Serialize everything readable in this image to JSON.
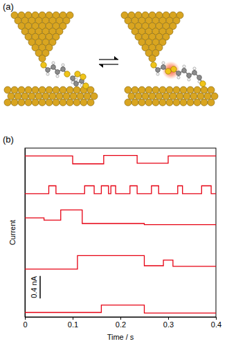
{
  "panel_labels": [
    "(a)",
    "(b)"
  ],
  "chart_data": {
    "type": "line",
    "line_style": "steps",
    "x_label": "Time / s",
    "y_label": "Current",
    "xlim": [
      0,
      0.4
    ],
    "xticks": [
      0,
      0.1,
      0.2,
      0.3,
      0.4
    ],
    "ylim": [
      0,
      3.0
    ],
    "tick_labels": "x",
    "grid": false,
    "color": "#e60012",
    "scale_bar": {
      "value": 0.4,
      "label": "0.4 nA"
    },
    "series": [
      {
        "x": [
          0,
          0.1,
          0.165,
          0.235,
          0.3,
          0.4
        ],
        "values": [
          2.86,
          2.72,
          2.87,
          2.73,
          2.86,
          2.86
        ]
      },
      {
        "x": [
          0,
          0.05,
          0.065,
          0.125,
          0.145,
          0.16,
          0.175,
          0.18,
          0.19,
          0.22,
          0.235,
          0.265,
          0.28,
          0.32,
          0.33,
          0.37,
          0.39,
          0.4
        ],
        "values": [
          2.19,
          2.33,
          2.19,
          2.33,
          2.19,
          2.33,
          2.19,
          2.33,
          2.19,
          2.33,
          2.19,
          2.33,
          2.19,
          2.33,
          2.19,
          2.33,
          2.19,
          2.19
        ]
      },
      {
        "x": [
          0,
          0.04,
          0.075,
          0.12,
          0.25,
          0.4
        ],
        "values": [
          1.76,
          1.72,
          1.9,
          1.66,
          1.64,
          1.63
        ]
      },
      {
        "x": [
          0,
          0.11,
          0.25,
          0.29,
          0.31,
          0.4
        ],
        "values": [
          0.85,
          1.09,
          0.91,
          1.01,
          0.9,
          0.9
        ]
      },
      {
        "x": [
          0,
          0.16,
          0.25,
          0.4
        ],
        "values": [
          0.08,
          0.21,
          0.07,
          0.07
        ]
      }
    ]
  }
}
